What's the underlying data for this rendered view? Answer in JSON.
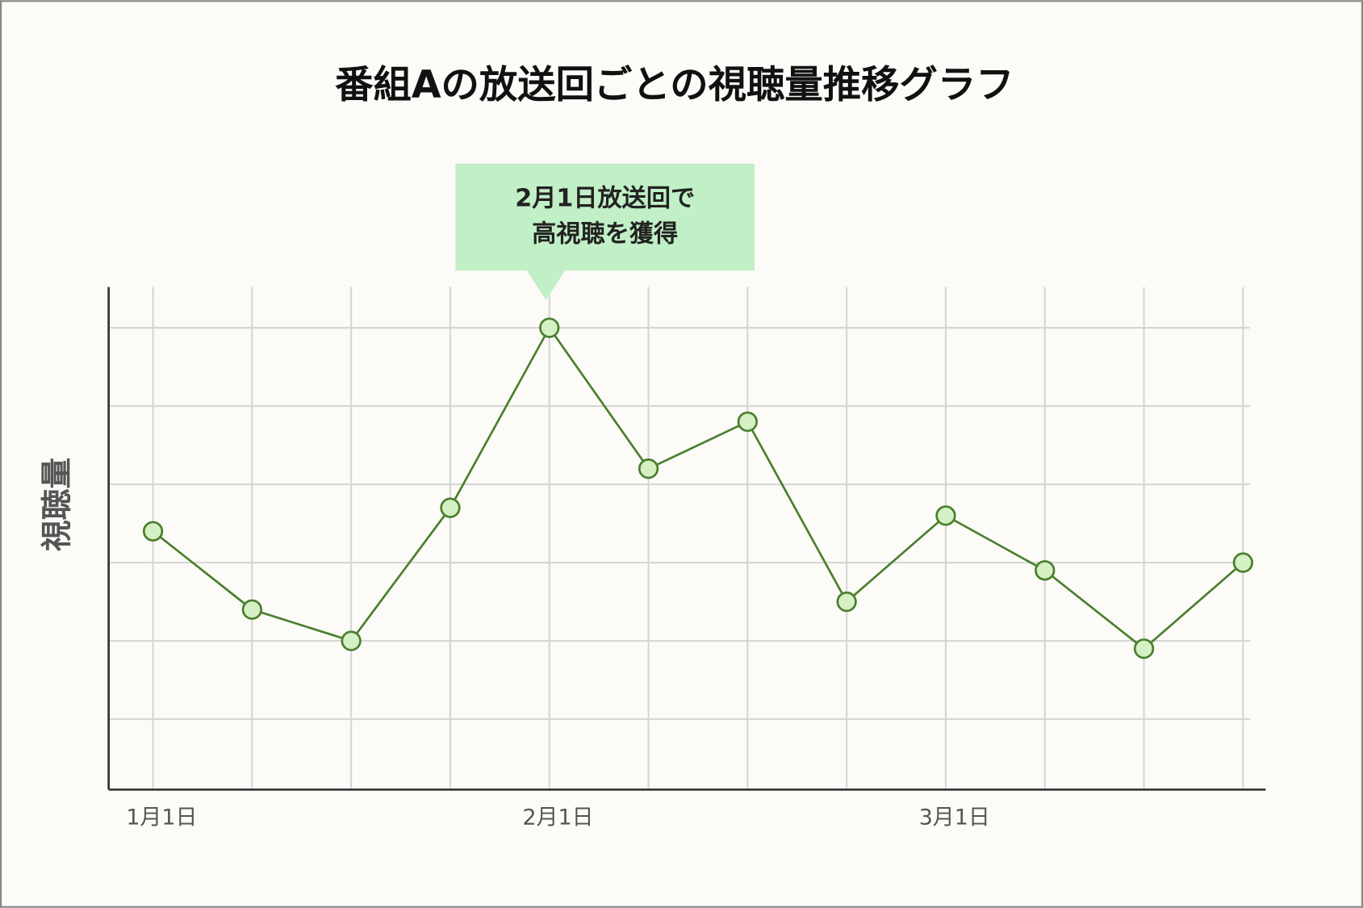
{
  "chart_data": {
    "type": "line",
    "title": "番組Aの放送回ごとの視聴量推移グラフ",
    "y_label": "視聴量",
    "categories": [
      "1月1日",
      null,
      null,
      null,
      "2月1日",
      null,
      null,
      null,
      "3月1日",
      null,
      null,
      null
    ],
    "series": [
      {
        "name": "視聴量",
        "color": "#4a7f2e",
        "marker_fill": "#d4f0c4",
        "values": [
          3.4,
          2.4,
          2.0,
          3.7,
          6.0,
          4.2,
          4.8,
          2.5,
          3.6,
          2.9,
          1.9,
          3.0
        ]
      }
    ],
    "ylim": [
      0.1,
      6.52
    ],
    "yticks": [
      1,
      2,
      3,
      4,
      5,
      6
    ],
    "show_ytick_labels": false,
    "grid": true,
    "annotation": [
      "2月1日放送回で",
      "高視聴を獲得"
    ]
  }
}
